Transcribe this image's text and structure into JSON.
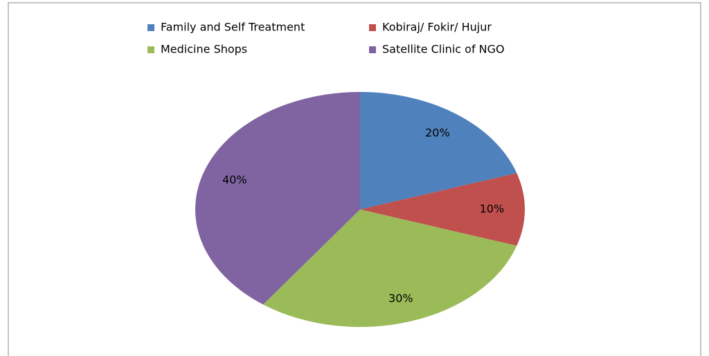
{
  "chart_data": {
    "type": "pie",
    "categories": [
      "Family and Self Treatment",
      "Kobiraj/ Fokir/ Hujur",
      "Medicine Shops",
      "Satellite Clinic of NGO"
    ],
    "values": [
      20,
      10,
      30,
      40
    ],
    "value_labels": [
      "20%",
      "10%",
      "30%",
      "40%"
    ],
    "colors": [
      "#4f81bd",
      "#c0504d",
      "#9bbb59",
      "#8064a2"
    ],
    "legend": "top"
  }
}
